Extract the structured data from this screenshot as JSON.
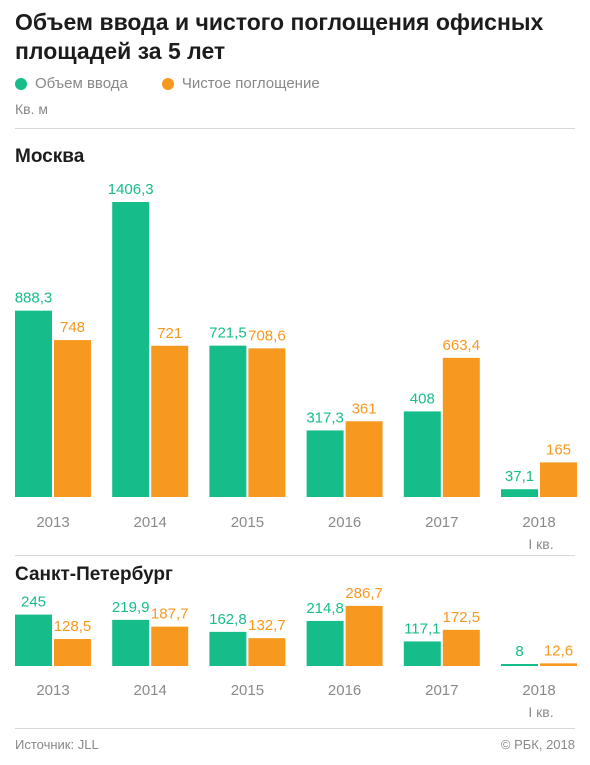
{
  "title": "Объем ввода и чистого поглощения офисных площадей за 5 лет",
  "legend": [
    {
      "label": "Объем ввода",
      "color": "#16bd8a"
    },
    {
      "label": "Чистое поглощение",
      "color": "#f7981f"
    }
  ],
  "units": "Кв. м",
  "source": "Источник: JLL",
  "copyright": "© РБК, 2018",
  "colors": {
    "series1": "#16bd8a",
    "series2": "#f7981f",
    "axis_text": "#8a8a8a"
  },
  "chart_data": [
    {
      "type": "bar",
      "title": "Москва",
      "categories": [
        "2013",
        "2014",
        "2015",
        "2016",
        "2017",
        "2018"
      ],
      "category_sublabels": [
        "",
        "",
        "",
        "",
        "",
        "I кв."
      ],
      "series": [
        {
          "name": "Объем ввода",
          "values": [
            888.3,
            1406.3,
            721.5,
            317.3,
            408,
            37.1
          ],
          "labels": [
            "888,3",
            "1406,3",
            "721,5",
            "317,3",
            "408",
            "37,1"
          ]
        },
        {
          "name": "Чистое поглощение",
          "values": [
            748,
            721,
            708.6,
            361,
            663.4,
            165
          ],
          "labels": [
            "748",
            "721",
            "708,6",
            "361",
            "663,4",
            "165"
          ]
        }
      ],
      "ylim": [
        0,
        1406.3
      ]
    },
    {
      "type": "bar",
      "title": "Санкт-Петербург",
      "categories": [
        "2013",
        "2014",
        "2015",
        "2016",
        "2017",
        "2018"
      ],
      "category_sublabels": [
        "",
        "",
        "",
        "",
        "",
        "I кв."
      ],
      "series": [
        {
          "name": "Объем ввода",
          "values": [
            245,
            219.9,
            162.8,
            214.8,
            117.1,
            8
          ],
          "labels": [
            "245",
            "219,9",
            "162,8",
            "214,8",
            "117,1",
            "8"
          ]
        },
        {
          "name": "Чистое поглощение",
          "values": [
            128.5,
            187.7,
            132.7,
            286.7,
            172.5,
            12.6
          ],
          "labels": [
            "128,5",
            "187,7",
            "132,7",
            "286,7",
            "172,5",
            "12,6"
          ]
        }
      ],
      "ylim": [
        0,
        1406.3
      ]
    }
  ]
}
